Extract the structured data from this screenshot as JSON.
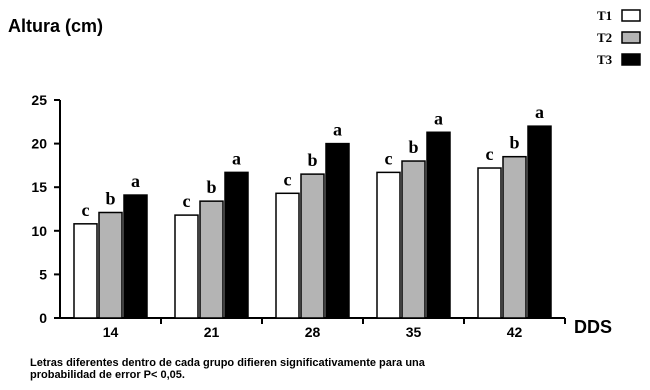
{
  "chart_data": {
    "type": "bar",
    "ylabel": "Altura (cm)",
    "xlabel": "DDS",
    "categories": [
      "14",
      "21",
      "28",
      "35",
      "42"
    ],
    "ylim": [
      0,
      25
    ],
    "yticks": [
      0,
      5,
      10,
      15,
      20,
      25
    ],
    "grid": false,
    "legend_position": "top-right",
    "series": [
      {
        "name": "T1",
        "color": "#ffffff",
        "values": [
          10.8,
          11.8,
          14.3,
          16.7,
          17.2
        ],
        "labels": [
          "c",
          "c",
          "c",
          "c",
          "c"
        ]
      },
      {
        "name": "T2",
        "color": "#b4b4b4",
        "values": [
          12.1,
          13.4,
          16.5,
          18.0,
          18.5
        ],
        "labels": [
          "b",
          "b",
          "b",
          "b",
          "b"
        ]
      },
      {
        "name": "T3",
        "color": "#000000",
        "values": [
          14.1,
          16.7,
          20.0,
          21.3,
          22.0
        ],
        "labels": [
          "a",
          "a",
          "a",
          "a",
          "a"
        ]
      }
    ]
  },
  "footnote": {
    "line1": "Letras diferentes dentro de cada grupo difieren significativamente para una",
    "line2": "probabilidad de error P< 0,05."
  }
}
